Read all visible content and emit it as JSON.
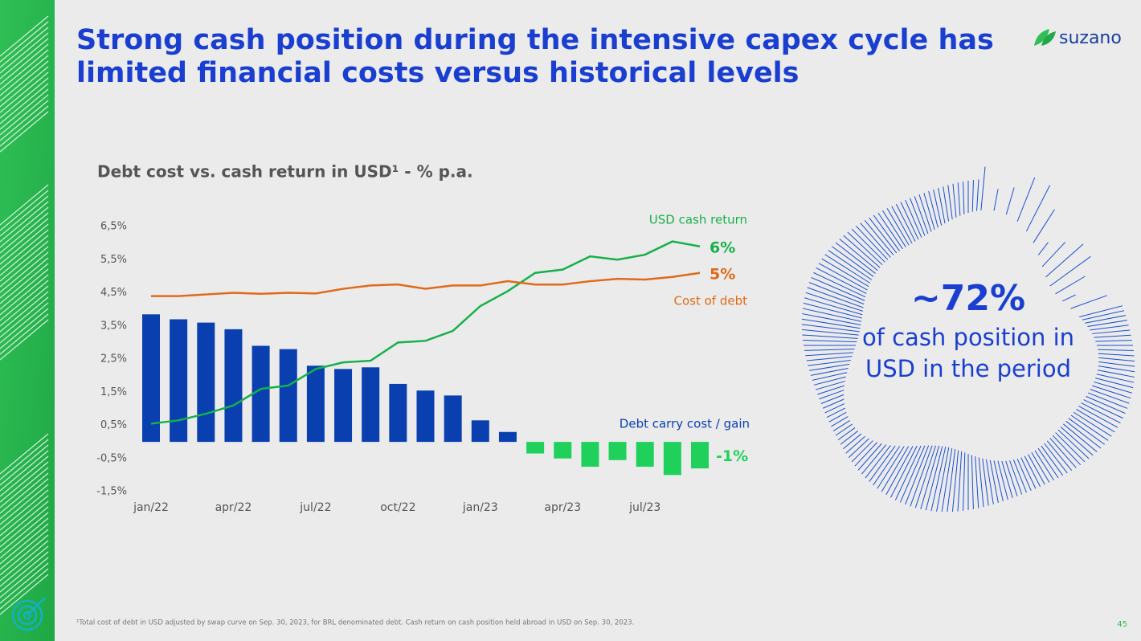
{
  "header": {
    "title_lines": [
      "Strong cash position during the intensive capex cycle has",
      "limited financial costs versus historical levels"
    ],
    "logo": "suzano"
  },
  "chart_data": {
    "type": "combo",
    "title": "Debt cost vs. cash return in USD¹ - % p.a.",
    "categories": [
      "jan/22",
      null,
      null,
      "apr/22",
      null,
      null,
      "jul/22",
      null,
      null,
      "oct/22",
      null,
      null,
      "jan/23",
      null,
      null,
      "apr/23",
      null,
      null,
      "jul/23",
      null,
      null
    ],
    "series": [
      {
        "name": "USD cash return",
        "type": "line",
        "color": "#17b04a",
        "values": [
          0.55,
          0.65,
          0.85,
          1.1,
          1.6,
          1.7,
          2.2,
          2.4,
          2.45,
          3.0,
          3.05,
          3.35,
          4.1,
          4.55,
          5.1,
          5.2,
          5.6,
          5.5,
          5.65,
          6.05,
          5.9
        ],
        "value_labels": [
          null,
          null,
          null,
          null,
          null,
          null,
          null,
          null,
          null,
          null,
          null,
          null,
          null,
          null,
          null,
          null,
          null,
          null,
          null,
          null,
          "6%"
        ]
      },
      {
        "name": "Cost of debt",
        "type": "line",
        "color": "#e06a1a",
        "values": [
          4.4,
          4.4,
          4.45,
          4.5,
          4.47,
          4.5,
          4.48,
          4.62,
          4.72,
          4.75,
          4.62,
          4.72,
          4.72,
          4.85,
          4.75,
          4.75,
          4.85,
          4.92,
          4.9,
          4.98,
          5.1
        ],
        "value_labels": [
          null,
          null,
          null,
          null,
          null,
          null,
          null,
          null,
          null,
          null,
          null,
          null,
          null,
          null,
          null,
          null,
          null,
          null,
          null,
          null,
          "5%"
        ]
      },
      {
        "name": "Debt carry cost / gain",
        "type": "bar",
        "color": "#0a3fb0",
        "negative_color": "#1fd15a",
        "values": [
          3.85,
          3.7,
          3.6,
          3.4,
          2.9,
          2.8,
          2.3,
          2.2,
          2.25,
          1.75,
          1.55,
          1.4,
          0.65,
          0.3,
          -0.35,
          -0.5,
          -0.75,
          -0.55,
          -0.75,
          -1.0,
          -0.8
        ],
        "value_labels": [
          null,
          null,
          null,
          null,
          null,
          null,
          null,
          null,
          null,
          null,
          null,
          null,
          null,
          null,
          null,
          null,
          null,
          null,
          null,
          null,
          "-1%"
        ]
      }
    ],
    "ylim": [
      -1.5,
      6.5
    ],
    "yticks": [
      {
        "value": 6.5,
        "label": "6,5%"
      },
      {
        "value": 5.5,
        "label": "5,5%"
      },
      {
        "value": 4.5,
        "label": "4,5%"
      },
      {
        "value": 3.5,
        "label": "3,5%"
      },
      {
        "value": 2.5,
        "label": "2,5%"
      },
      {
        "value": 1.5,
        "label": "1,5%"
      },
      {
        "value": 0.5,
        "label": "0,5%"
      },
      {
        "value": -0.5,
        "label": "-0,5%"
      },
      {
        "value": -1.5,
        "label": "-1,5%"
      }
    ],
    "grid": false
  },
  "callout": {
    "headline": "~72%",
    "lines": [
      "of cash position in",
      "USD in the period"
    ]
  },
  "footer": {
    "note": "¹Total cost of debt in USD adjusted by swap curve on Sep. 30, 2023, for BRL denominated debt. Cash return on cash position held abroad in USD on Sep. 30, 2023.",
    "page": "45"
  }
}
